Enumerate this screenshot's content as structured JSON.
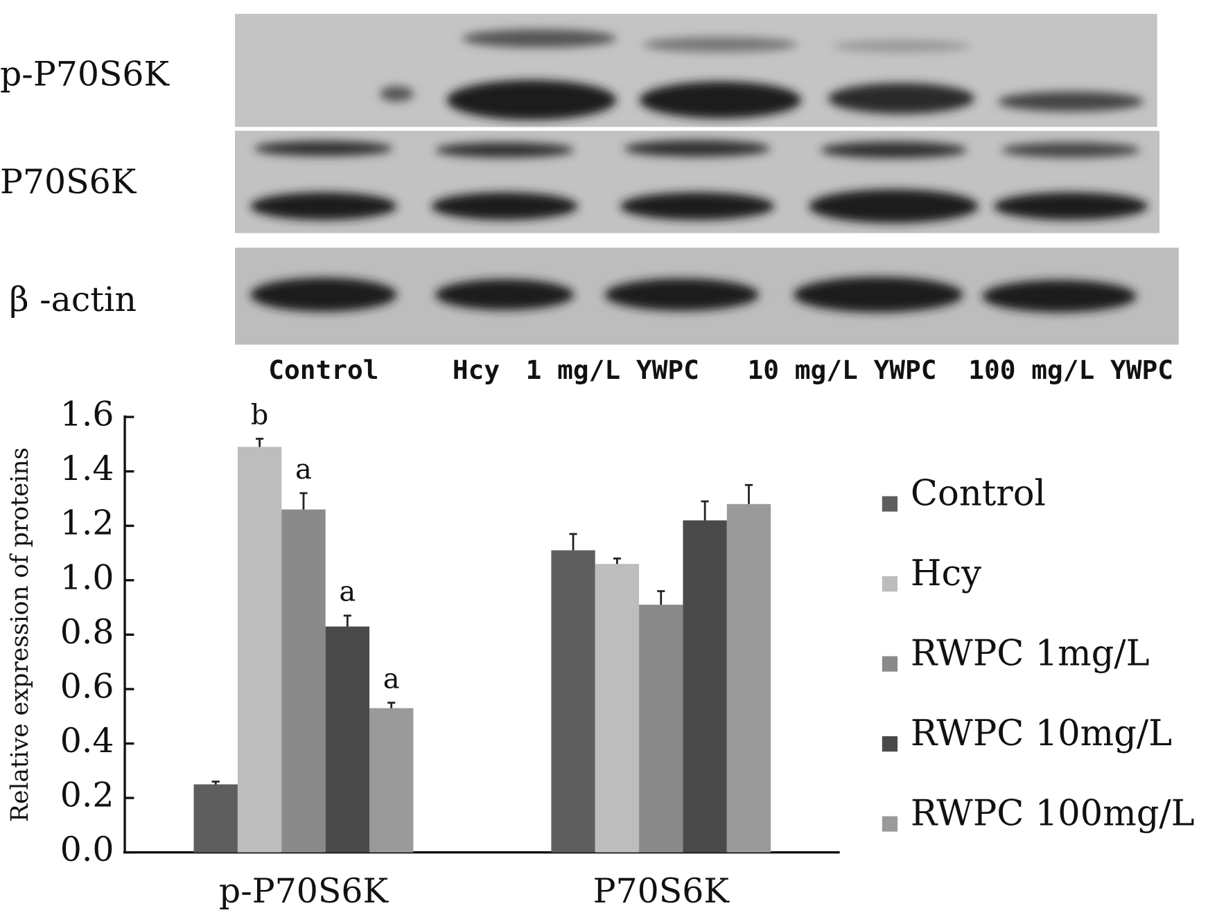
{
  "blot": {
    "rows": [
      "p-P70S6K",
      "P70S6K",
      "β -actin"
    ],
    "lanes": [
      "Control",
      "Hcy",
      "1 mg/L YWPC",
      "10 mg/L YWPC",
      "100 mg/L YWPC"
    ]
  },
  "chart_data": {
    "type": "bar",
    "ylabel": "Relative expression of proteins",
    "categories": [
      "p-P70S6K",
      "P70S6K"
    ],
    "series": [
      {
        "name": "Control",
        "color": "#5e5e5e",
        "values": [
          0.25,
          1.11
        ],
        "errors": [
          0.01,
          0.06
        ]
      },
      {
        "name": "Hcy",
        "color": "#bdbdbd",
        "values": [
          1.49,
          1.06
        ],
        "errors": [
          0.03,
          0.02
        ],
        "annotations": [
          "b",
          null
        ]
      },
      {
        "name": "RWPC 1mg/L",
        "color": "#8a8a8a",
        "values": [
          1.26,
          0.91
        ],
        "errors": [
          0.06,
          0.05
        ],
        "annotations": [
          "a",
          null
        ]
      },
      {
        "name": "RWPC 10mg/L",
        "color": "#4a4a4a",
        "values": [
          0.83,
          1.22
        ],
        "errors": [
          0.04,
          0.07
        ],
        "annotations": [
          "a",
          null
        ]
      },
      {
        "name": "RWPC 100mg/L",
        "color": "#9a9a9a",
        "values": [
          0.53,
          1.28
        ],
        "errors": [
          0.02,
          0.07
        ],
        "annotations": [
          "a",
          null
        ]
      }
    ],
    "ylim": [
      0,
      1.6
    ],
    "yticks": [
      {
        "value": 0,
        "label": "0.0"
      },
      {
        "value": 0.2,
        "label": "0.2"
      },
      {
        "value": 0.4,
        "label": "0.4"
      },
      {
        "value": 0.6,
        "label": "0.6"
      },
      {
        "value": 0.8,
        "label": "0.8"
      },
      {
        "value": 1,
        "label": "1.0"
      },
      {
        "value": 1.2,
        "label": "1.2"
      },
      {
        "value": 1.4,
        "label": "1.4"
      },
      {
        "value": 1.6,
        "label": "1.6"
      }
    ],
    "legend": "right"
  }
}
